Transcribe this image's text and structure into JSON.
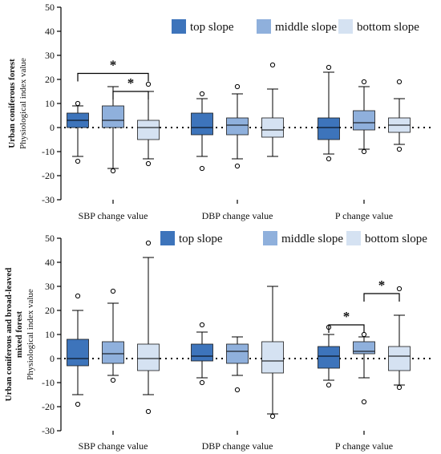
{
  "chart_data": [
    {
      "type": "box",
      "ylabel_lines": [
        "Urban coniferous forest",
        "Physiological index value"
      ],
      "ylim": [
        -30,
        50
      ],
      "yticks": [
        -30,
        -20,
        -10,
        0,
        10,
        20,
        30,
        40,
        50
      ],
      "legend": {
        "position": "top-right",
        "entries": [
          "top slope",
          "middle slope",
          "bottom slope"
        ]
      },
      "categories": [
        "SBP change value",
        "DBP change value",
        "P change value"
      ],
      "reference_line": 0,
      "series": [
        {
          "color": "#3d74bb",
          "boxes": [
            {
              "whisker_low": -12,
              "q1": 0,
              "median": 3,
              "q3": 6,
              "whisker_high": 9,
              "outliers": [
                10,
                -14
              ]
            },
            {
              "whisker_low": -12,
              "q1": -3,
              "median": 0,
              "q3": 6,
              "whisker_high": 12,
              "outliers": [
                14,
                -17
              ]
            },
            {
              "whisker_low": -11,
              "q1": -5,
              "median": 0,
              "q3": 4,
              "whisker_high": 23,
              "outliers": [
                25,
                -13
              ]
            }
          ]
        },
        {
          "color": "#8fb0dc",
          "boxes": [
            {
              "whisker_low": -17,
              "q1": 0,
              "median": 3,
              "q3": 9,
              "whisker_high": 17,
              "outliers": [
                -18
              ]
            },
            {
              "whisker_low": -13,
              "q1": -3,
              "median": 1,
              "q3": 4,
              "whisker_high": 14,
              "outliers": [
                17,
                -16
              ]
            },
            {
              "whisker_low": -9,
              "q1": -1,
              "median": 2,
              "q3": 7,
              "whisker_high": 17,
              "outliers": [
                19,
                -10
              ]
            }
          ]
        },
        {
          "color": "#d5e2f2",
          "boxes": [
            {
              "whisker_low": -13,
              "q1": -5,
              "median": 0,
              "q3": 3,
              "whisker_high": 15,
              "outliers": [
                18,
                -15
              ]
            },
            {
              "whisker_low": -12,
              "q1": -4,
              "median": -1,
              "q3": 4,
              "whisker_high": 16,
              "outliers": [
                26
              ]
            },
            {
              "whisker_low": -7,
              "q1": -2,
              "median": 1,
              "q3": 4,
              "whisker_high": 12,
              "outliers": [
                19,
                -9
              ]
            }
          ]
        }
      ],
      "significance": [
        {
          "category": 0,
          "from": 0,
          "to": 2,
          "y": 22.5,
          "label": "*"
        },
        {
          "category": 0,
          "from": 1,
          "to": 2,
          "y": 15,
          "label": "*"
        }
      ]
    },
    {
      "type": "box",
      "ylabel_lines": [
        "Urban coniferous and broad-leaved",
        "mixed forest",
        "Physiological index value"
      ],
      "ylim": [
        -30,
        50
      ],
      "yticks": [
        -30,
        -20,
        -10,
        0,
        10,
        20,
        30,
        40,
        50
      ],
      "legend": {
        "position": "top-right",
        "entries": [
          "top slope",
          "middle slope",
          "bottom slope"
        ]
      },
      "categories": [
        "SBP change value",
        "DBP change value",
        "P change value"
      ],
      "reference_line": 0,
      "series": [
        {
          "color": "#3d74bb",
          "boxes": [
            {
              "whisker_low": -15,
              "q1": -3,
              "median": 0,
              "q3": 8,
              "whisker_high": 20,
              "outliers": [
                26,
                -19
              ]
            },
            {
              "whisker_low": -8,
              "q1": -1,
              "median": 1,
              "q3": 6,
              "whisker_high": 11,
              "outliers": [
                14,
                -10
              ]
            },
            {
              "whisker_low": -9,
              "q1": -4,
              "median": 1,
              "q3": 5,
              "whisker_high": 10,
              "outliers": [
                13,
                -11
              ]
            }
          ]
        },
        {
          "color": "#8fb0dc",
          "boxes": [
            {
              "whisker_low": -7,
              "q1": -2,
              "median": 2,
              "q3": 7,
              "whisker_high": 23,
              "outliers": [
                28,
                -9
              ]
            },
            {
              "whisker_low": -7,
              "q1": -2,
              "median": 3,
              "q3": 6,
              "whisker_high": 9,
              "outliers": [
                -13
              ]
            },
            {
              "whisker_low": -8,
              "q1": 2,
              "median": 3,
              "q3": 7,
              "whisker_high": 9,
              "outliers": [
                10,
                -18
              ]
            }
          ]
        },
        {
          "color": "#d5e2f2",
          "boxes": [
            {
              "whisker_low": -15,
              "q1": -5,
              "median": 0,
              "q3": 6,
              "whisker_high": 42,
              "outliers": [
                48,
                -22
              ]
            },
            {
              "whisker_low": -23,
              "q1": -6,
              "median": -1,
              "q3": 7,
              "whisker_high": 30,
              "outliers": [
                -24
              ]
            },
            {
              "whisker_low": -11,
              "q1": -5,
              "median": 1,
              "q3": 5,
              "whisker_high": 18,
              "outliers": [
                29,
                -12
              ]
            }
          ]
        }
      ],
      "significance": [
        {
          "category": 2,
          "from": 0,
          "to": 1,
          "y": 14,
          "label": "*"
        },
        {
          "category": 2,
          "from": 1,
          "to": 2,
          "y": 27,
          "label": "*"
        }
      ]
    }
  ]
}
